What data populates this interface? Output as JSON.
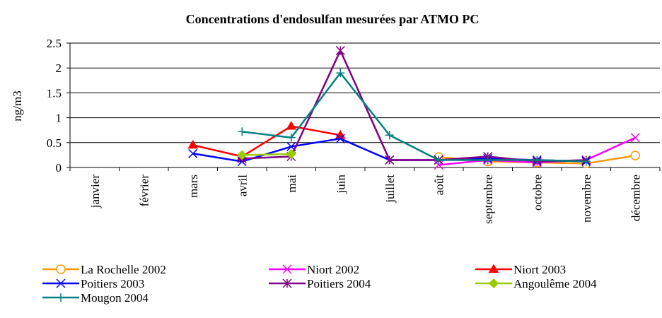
{
  "chart_data": {
    "type": "line",
    "title": "Concentrations d'endosulfan mesurées par ATMO PC",
    "y_label": "ng/m3",
    "categories": [
      "janvier",
      "février",
      "mars",
      "avril",
      "mai",
      "juin",
      "juillet",
      "août",
      "septembre",
      "octobre",
      "novembre",
      "décembre"
    ],
    "ylim": [
      0,
      2.5
    ],
    "yticks": [
      0,
      0.5,
      1,
      1.5,
      2,
      2.5
    ],
    "grid": true,
    "legend": "bottom",
    "series": [
      {
        "name": "La Rochelle 2002",
        "color": "#ff9900",
        "marker": "circle",
        "values": [
          null,
          null,
          null,
          null,
          null,
          null,
          null,
          0.21,
          0.12,
          0.1,
          0.08,
          0.24
        ]
      },
      {
        "name": "Niort 2002",
        "color": "#ff00ff",
        "marker": "x",
        "values": [
          null,
          null,
          null,
          null,
          null,
          null,
          null,
          0.05,
          0.15,
          0.1,
          0.15,
          0.6
        ]
      },
      {
        "name": "Niort 2003",
        "color": "#ff0000",
        "marker": "triangle",
        "values": [
          null,
          null,
          0.45,
          0.22,
          0.83,
          0.65,
          null,
          null,
          null,
          null,
          null,
          null
        ]
      },
      {
        "name": "Poitiers 2003",
        "color": "#0000ff",
        "marker": "x",
        "values": [
          null,
          null,
          0.28,
          0.12,
          0.42,
          0.58,
          0.15,
          0.15,
          0.18,
          0.15,
          0.12,
          null
        ]
      },
      {
        "name": "Poitiers 2004",
        "color": "#800080",
        "marker": "star",
        "values": [
          null,
          null,
          null,
          0.18,
          0.22,
          2.35,
          0.15,
          0.15,
          0.22,
          0.12,
          0.15,
          null
        ]
      },
      {
        "name": "Angoulême 2004",
        "color": "#99cc00",
        "marker": "diamond",
        "values": [
          null,
          null,
          null,
          0.25,
          0.27,
          null,
          null,
          null,
          null,
          null,
          null,
          null
        ]
      },
      {
        "name": "Mougon  2004",
        "color": "#008080",
        "marker": "plus",
        "values": [
          null,
          null,
          null,
          0.72,
          0.6,
          1.9,
          0.65,
          0.15,
          0.15,
          0.15,
          0.12,
          null
        ]
      }
    ]
  }
}
